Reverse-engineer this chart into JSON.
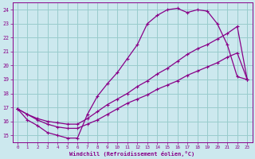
{
  "xlabel": "Windchill (Refroidissement éolien,°C)",
  "bg_color": "#cce8ee",
  "line_color": "#880088",
  "grid_color": "#99cccc",
  "xlim": [
    -0.5,
    23.5
  ],
  "ylim": [
    14.5,
    24.5
  ],
  "xticks": [
    0,
    1,
    2,
    3,
    4,
    5,
    6,
    7,
    8,
    9,
    10,
    11,
    12,
    13,
    14,
    15,
    16,
    17,
    18,
    19,
    20,
    21,
    22,
    23
  ],
  "yticks": [
    15,
    16,
    17,
    18,
    19,
    20,
    21,
    22,
    23,
    24
  ],
  "curve1_x": [
    0,
    1,
    2,
    3,
    4,
    5,
    6,
    7,
    8,
    9,
    10,
    11,
    12,
    13,
    14,
    15,
    16,
    17,
    18,
    19,
    20,
    21,
    22,
    23
  ],
  "curve1_y": [
    16.9,
    16.1,
    15.7,
    15.2,
    15.0,
    14.8,
    14.8,
    16.5,
    17.8,
    18.7,
    19.5,
    20.5,
    21.5,
    23.0,
    23.6,
    24.0,
    24.1,
    23.8,
    24.0,
    23.9,
    23.0,
    21.5,
    19.2,
    19.0
  ],
  "curve2_x": [
    0,
    1,
    2,
    3,
    4,
    5,
    6,
    7,
    8,
    9,
    10,
    11,
    12,
    13,
    14,
    15,
    16,
    17,
    18,
    19,
    20,
    21,
    22,
    23
  ],
  "curve2_y": [
    16.9,
    16.5,
    16.2,
    16.0,
    15.9,
    15.8,
    15.8,
    16.2,
    16.7,
    17.2,
    17.6,
    18.0,
    18.5,
    18.9,
    19.4,
    19.8,
    20.3,
    20.8,
    21.2,
    21.5,
    21.9,
    22.3,
    22.8,
    19.0
  ],
  "curve3_x": [
    0,
    1,
    2,
    3,
    4,
    5,
    6,
    7,
    8,
    9,
    10,
    11,
    12,
    13,
    14,
    15,
    16,
    17,
    18,
    19,
    20,
    21,
    22,
    23
  ],
  "curve3_y": [
    16.9,
    16.5,
    16.1,
    15.8,
    15.6,
    15.5,
    15.5,
    15.8,
    16.1,
    16.5,
    16.9,
    17.3,
    17.6,
    17.9,
    18.3,
    18.6,
    18.9,
    19.3,
    19.6,
    19.9,
    20.2,
    20.6,
    20.9,
    19.0
  ]
}
